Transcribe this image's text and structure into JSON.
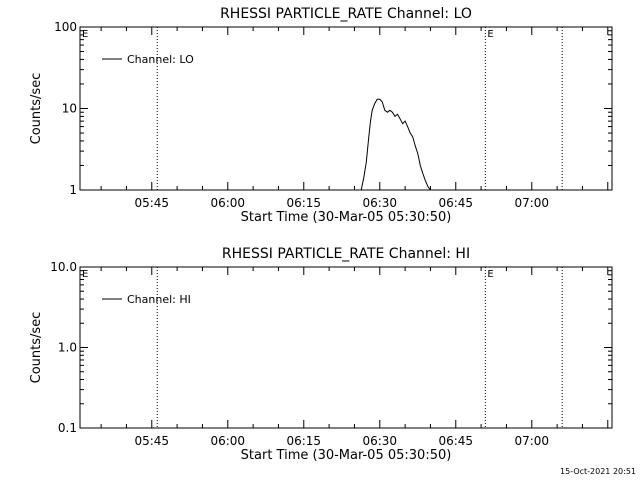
{
  "chart_data": [
    {
      "type": "line",
      "title": "RHESSI PARTICLE_RATE Channel: LO",
      "xlabel": "Start Time (30-Mar-05 05:30:50)",
      "ylabel": "Counts/sec",
      "yscale": "log",
      "xlim": [
        "05:30:50",
        "07:15:50"
      ],
      "ylim": [
        1,
        100
      ],
      "x_ticks": [
        "05:45",
        "06:00",
        "06:15",
        "06:30",
        "06:45",
        "07:00"
      ],
      "y_ticks": [
        "1",
        "10",
        "100"
      ],
      "legend_position": "top-left",
      "vertical_markers": [
        {
          "x": "05:46:05",
          "label": ""
        },
        {
          "x": "06:50:50",
          "label": "E"
        },
        {
          "x": "07:06:00",
          "label": ""
        }
      ],
      "edge_label": "E",
      "series": [
        {
          "name": "Channel: LO",
          "x": [
            "06:26:20",
            "06:26:50",
            "06:27:20",
            "06:27:50",
            "06:28:10",
            "06:28:30",
            "06:29:00",
            "06:29:30",
            "06:30:00",
            "06:30:30",
            "06:31:00",
            "06:31:30",
            "06:32:00",
            "06:32:30",
            "06:33:00",
            "06:33:30",
            "06:34:00",
            "06:34:30",
            "06:35:00",
            "06:35:30",
            "06:36:00",
            "06:36:30",
            "06:37:00",
            "06:37:30",
            "06:38:00",
            "06:38:30",
            "06:39:00",
            "06:39:30",
            "06:40:00"
          ],
          "values": [
            1,
            1.4,
            2.2,
            4.5,
            7,
            9.5,
            11.5,
            13,
            13,
            12,
            9.5,
            9,
            9.5,
            9,
            8,
            8.5,
            7.5,
            6.5,
            7,
            6,
            5,
            4.5,
            3.5,
            2.8,
            2,
            1.6,
            1.3,
            1.1,
            1
          ]
        }
      ]
    },
    {
      "type": "line",
      "title": "RHESSI PARTICLE_RATE Channel: HI",
      "xlabel": "Start Time (30-Mar-05 05:30:50)",
      "ylabel": "Counts/sec",
      "yscale": "log",
      "xlim": [
        "05:30:50",
        "07:15:50"
      ],
      "ylim": [
        0.1,
        10
      ],
      "x_ticks": [
        "05:45",
        "06:00",
        "06:15",
        "06:30",
        "06:45",
        "07:00"
      ],
      "y_ticks": [
        "0.1",
        "1.0",
        "10.0"
      ],
      "legend_position": "top-left",
      "vertical_markers": [
        {
          "x": "05:46:05",
          "label": ""
        },
        {
          "x": "06:50:50",
          "label": "E"
        },
        {
          "x": "07:06:00",
          "label": ""
        }
      ],
      "edge_label": "E",
      "series": [
        {
          "name": "Channel: HI",
          "x": [],
          "values": []
        }
      ]
    }
  ],
  "footer": {
    "timestamp": "15-Oct-2021 20:51"
  }
}
